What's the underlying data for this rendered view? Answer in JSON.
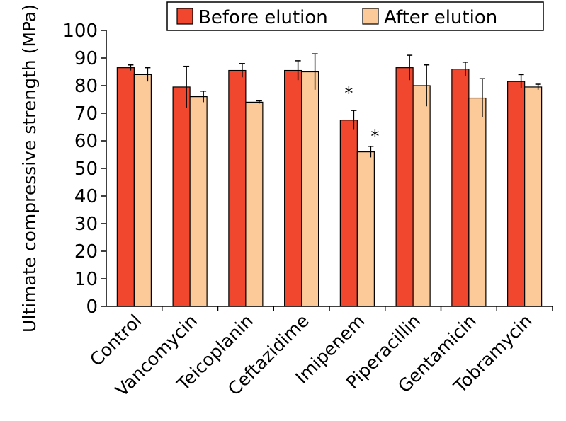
{
  "chart_data": {
    "type": "bar",
    "title": "",
    "xlabel": "",
    "ylabel": "Ultimate compressive strength (MPa)",
    "ylim": [
      0,
      100
    ],
    "yticks": [
      0,
      10,
      20,
      30,
      40,
      50,
      60,
      70,
      80,
      90,
      100
    ],
    "categories": [
      "Control",
      "Vancomycin",
      "Teicoplanin",
      "Ceftazidime",
      "Imipenem",
      "Piperacillin",
      "Gentamicin",
      "Tobramycin"
    ],
    "series": [
      {
        "name": "Before elution",
        "color": "#f2472f",
        "values": [
          86.5,
          79.5,
          85.5,
          85.5,
          67.5,
          86.5,
          86.0,
          81.5
        ],
        "errors": [
          1.0,
          7.5,
          2.5,
          3.5,
          3.5,
          4.5,
          2.5,
          2.5
        ]
      },
      {
        "name": "After elution",
        "color": "#fcc998",
        "values": [
          84.0,
          76.0,
          74.0,
          85.0,
          56.0,
          80.0,
          75.5,
          79.5
        ],
        "errors": [
          2.5,
          2.0,
          0.5,
          6.5,
          2.0,
          7.5,
          7.0,
          1.0
        ]
      }
    ],
    "annotations": [
      {
        "category": "Imipenem",
        "series": "Before elution",
        "text": "*"
      },
      {
        "category": "Imipenem",
        "series": "After elution",
        "text": "*"
      }
    ],
    "legend": {
      "position": "top-right",
      "items": [
        "Before elution",
        "After elution"
      ]
    },
    "grid": false
  }
}
